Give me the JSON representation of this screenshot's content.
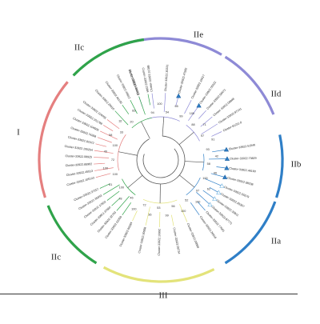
{
  "figure": {
    "groups": [
      {
        "id": "IIe",
        "label": "IIe",
        "color": "#8e8ad6"
      },
      {
        "id": "IId",
        "label": "IId",
        "color": "#8e8ad6"
      },
      {
        "id": "IIb",
        "label": "IIb",
        "color": "#2f7fc7"
      },
      {
        "id": "IIa",
        "label": "IIa",
        "color": "#2f7fc7"
      },
      {
        "id": "III",
        "label": "III",
        "color": "#e3e37a"
      },
      {
        "id": "IIc_bottom",
        "label": "IIc",
        "color": "#2fa34a"
      },
      {
        "id": "I",
        "label": "I",
        "color": "#e57f7f"
      },
      {
        "id": "IIc_top",
        "label": "IIc",
        "color": "#2fa34a"
      }
    ],
    "leaves": [
      {
        "label": "Cluster-33922.79750",
        "group": "IIe",
        "marker": "none"
      },
      {
        "label": "Cluster-33922.31388",
        "group": "IIe",
        "marker": "none"
      },
      {
        "label": "Cluster-33922.30231",
        "group": "IIe",
        "marker": "none"
      },
      {
        "label": "Cluster-33922.47582",
        "group": "IIe",
        "marker": "triangle"
      },
      {
        "label": "Cluster-33922.16617",
        "group": "IIe",
        "marker": "none"
      },
      {
        "label": "Cluster-33922.55632",
        "group": "IId",
        "marker": "triangle"
      },
      {
        "label": "Cluster-33922.58471",
        "group": "IId",
        "marker": "none"
      },
      {
        "label": "Cluster-33922.09898",
        "group": "IId",
        "marker": "none"
      },
      {
        "label": "Cluster-33922.87141",
        "group": "IId",
        "marker": "none"
      },
      {
        "label": "Cluster-91231.0",
        "group": "IId",
        "marker": "none"
      },
      {
        "label": "Cluster-33922.51546",
        "group": "IIb",
        "marker": "triangle"
      },
      {
        "label": "Cluster-33922.73829",
        "group": "IIb",
        "marker": "triangle"
      },
      {
        "label": "Cluster-33922.46160",
        "group": "IIb",
        "marker": "triangle"
      },
      {
        "label": "Cluster-33922.58238",
        "group": "IIb",
        "marker": "triangle"
      },
      {
        "label": "Cluster-33922.55579",
        "group": "IIa",
        "marker": "triangle-open"
      },
      {
        "label": "Cluster-33922.85357",
        "group": "IIa",
        "marker": "triangle-open"
      },
      {
        "label": "Cluster-33922.32811",
        "group": "IIa",
        "marker": "triangle-open"
      },
      {
        "label": "Cluster-33922.87771",
        "group": "IIa",
        "marker": "triangle-open"
      },
      {
        "label": "Cluster-33922.77001",
        "group": "IIa",
        "marker": "none"
      },
      {
        "label": "Cluster-33922.26810",
        "group": "IIa",
        "marker": "none"
      },
      {
        "label": "Cluster-33922.09888",
        "group": "III",
        "marker": "none"
      },
      {
        "label": "Cluster-33922.09734",
        "group": "III",
        "marker": "none"
      },
      {
        "label": "Cluster-33922.16992",
        "group": "III",
        "marker": "none"
      },
      {
        "label": "Cluster-33922.00958",
        "group": "III",
        "marker": "none"
      },
      {
        "label": "Cluster-33922.00284",
        "group": "III",
        "marker": "none"
      },
      {
        "label": "Cluster-33922.52059",
        "group": "IIc_bottom",
        "marker": "none"
      },
      {
        "label": "Cluster-33922.32763",
        "group": "IIc_bottom",
        "marker": "none"
      },
      {
        "label": "Cluster-33922.37660",
        "group": "IIc_bottom",
        "marker": "none"
      },
      {
        "label": "Cluster-33922.17602",
        "group": "IIc_bottom",
        "marker": "none"
      },
      {
        "label": "Cluster-33922.35693",
        "group": "IIc_bottom",
        "marker": "none"
      },
      {
        "label": "Cluster-33922.37257",
        "group": "IIc_bottom",
        "marker": "none"
      },
      {
        "label": "Cluster-33922.105143",
        "group": "I",
        "marker": "none"
      },
      {
        "label": "Cluster-33922.45513",
        "group": "I",
        "marker": "none"
      },
      {
        "label": "Cluster-33922.85902",
        "group": "I",
        "marker": "none"
      },
      {
        "label": "Cluster-33922.08925",
        "group": "I",
        "marker": "none"
      },
      {
        "label": "Cluster-31922.105254",
        "group": "I",
        "marker": "none"
      },
      {
        "label": "Cluster-33922.92072",
        "group": "I",
        "marker": "none"
      },
      {
        "label": "Cluster-33922.74268",
        "group": "I",
        "marker": "none"
      },
      {
        "label": "Cluster-33922.104506",
        "group": "I",
        "marker": "none"
      },
      {
        "label": "Cluster-33922.101789",
        "group": "I",
        "marker": "none"
      },
      {
        "label": "Cluster-33922.104055",
        "group": "I",
        "marker": "none"
      },
      {
        "label": "Cluster-33922.20610",
        "group": "IIc_top",
        "marker": "none"
      },
      {
        "label": "Cluster-33922.46130",
        "group": "IIc_top",
        "marker": "none"
      },
      {
        "label": "Cluster-33922.49812",
        "group": "IIc_top",
        "marker": "none"
      },
      {
        "label": "Cluster-33922.29318",
        "group": "IIc_top",
        "marker": "none"
      },
      {
        "label": "Cluster-33922.2984",
        "group": "IIc_top",
        "marker": "none"
      }
    ],
    "bootstrap_values": [
      "94",
      "100",
      "54",
      "65",
      "99",
      "100",
      "88",
      "71",
      "97",
      "91",
      "93",
      "42",
      "58",
      "96",
      "100",
      "62",
      "97",
      "100",
      "52",
      "100",
      "56",
      "99",
      "53",
      "36",
      "72",
      "100",
      "46",
      "78",
      "100",
      "61",
      "100",
      "100",
      "72",
      "49",
      "100",
      "58",
      "33",
      "32",
      "20",
      "83"
    ]
  }
}
